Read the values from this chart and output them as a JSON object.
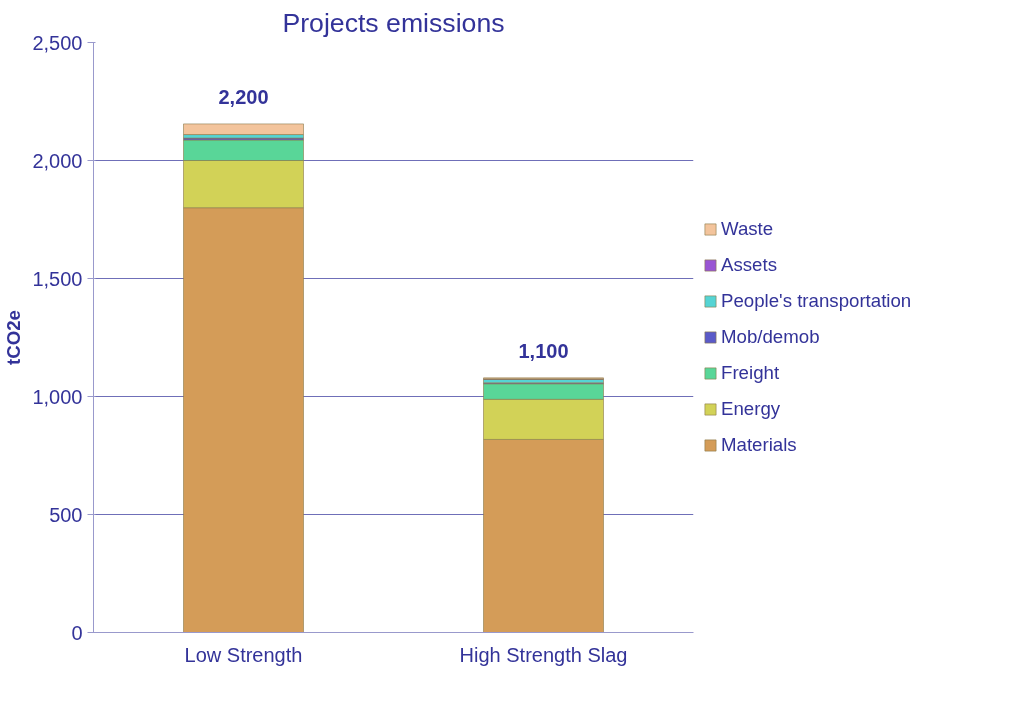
{
  "chart_data": {
    "type": "bar",
    "title": "Projects emissions",
    "ylabel": "tCO2e",
    "categories": [
      "Low Strength",
      "High Strength Slag"
    ],
    "stacked": true,
    "series": [
      {
        "name": "Materials",
        "color": "#d49c58",
        "values": [
          1800,
          818
        ]
      },
      {
        "name": "Energy",
        "color": "#d2d257",
        "values": [
          200,
          170
        ]
      },
      {
        "name": "Freight",
        "color": "#59d698",
        "values": [
          87,
          66
        ]
      },
      {
        "name": "Mob/demob",
        "color": "#5a5ac8",
        "values": [
          8,
          4
        ]
      },
      {
        "name": "People's transportation",
        "color": "#55d4d4",
        "values": [
          15,
          14
        ]
      },
      {
        "name": "Assets",
        "color": "#9955d4",
        "values": [
          null,
          3
        ]
      },
      {
        "name": "Waste",
        "color": "#f3c49c",
        "values": [
          45,
          4
        ]
      }
    ],
    "annotations": [
      "2,200",
      "1,100"
    ],
    "ylim": [
      0,
      2500
    ],
    "yticks": [
      0,
      500,
      {
        "value": 1000,
        "label": "1,000"
      },
      {
        "value": 1500,
        "label": "1,500"
      },
      {
        "value": 2000,
        "label": "2,000"
      },
      {
        "value": 2500,
        "label": "2,500"
      }
    ],
    "grid": "y",
    "legend": "right"
  }
}
